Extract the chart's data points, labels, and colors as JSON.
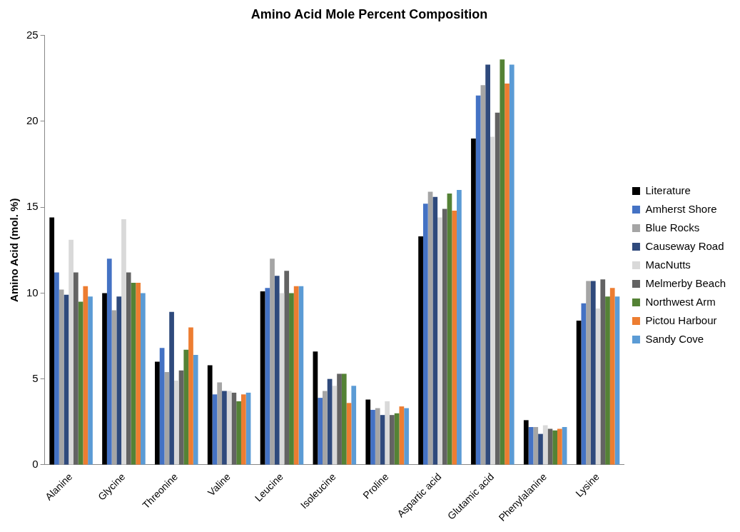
{
  "chart_data": {
    "type": "bar",
    "title": "Amino Acid Mole Percent Composition",
    "ylabel": "Amino Acid (mol. %)",
    "categories": [
      "Alanine",
      "Glycine",
      "Threonine",
      "Valine",
      "Leucine",
      "Isoleucine",
      "Proline",
      "Aspartic acid",
      "Glutamic acid",
      "Phenylalanine",
      "Lysine"
    ],
    "series": [
      {
        "name": "Literature",
        "color": "#000000",
        "values": [
          14.4,
          10.0,
          6.0,
          5.8,
          10.1,
          6.6,
          3.8,
          13.3,
          19.0,
          2.6,
          8.4
        ]
      },
      {
        "name": "Amherst Shore",
        "color": "#4472c4",
        "values": [
          11.2,
          12.0,
          6.8,
          4.1,
          10.3,
          3.9,
          3.2,
          15.2,
          21.5,
          2.2,
          9.4
        ]
      },
      {
        "name": "Blue Rocks",
        "color": "#a5a5a5",
        "values": [
          10.2,
          9.0,
          5.4,
          4.8,
          12.0,
          4.3,
          3.3,
          15.9,
          22.1,
          2.2,
          10.7
        ]
      },
      {
        "name": "Causeway Road",
        "color": "#2f4a7c",
        "values": [
          9.9,
          9.8,
          8.9,
          4.3,
          11.0,
          5.0,
          2.9,
          15.6,
          23.3,
          1.8,
          10.7
        ]
      },
      {
        "name": "MacNutts",
        "color": "#d9d9d9",
        "values": [
          13.1,
          14.3,
          4.9,
          4.3,
          10.0,
          4.6,
          3.7,
          14.4,
          19.1,
          2.3,
          9.1
        ]
      },
      {
        "name": "Melmerby Beach",
        "color": "#636363",
        "values": [
          11.2,
          11.2,
          5.5,
          4.2,
          11.3,
          5.3,
          2.9,
          14.9,
          20.5,
          2.1,
          10.8
        ]
      },
      {
        "name": "Northwest Arm",
        "color": "#548235",
        "values": [
          9.5,
          10.6,
          6.7,
          3.7,
          10.0,
          5.3,
          3.0,
          15.8,
          23.6,
          2.0,
          9.8
        ]
      },
      {
        "name": "Pictou Harbour",
        "color": "#ed7d31",
        "values": [
          10.4,
          10.6,
          8.0,
          4.1,
          10.4,
          3.6,
          3.4,
          14.8,
          22.2,
          2.1,
          10.3
        ]
      },
      {
        "name": "Sandy Cove",
        "color": "#5b9bd5",
        "values": [
          9.8,
          10.0,
          6.4,
          4.2,
          10.4,
          4.6,
          3.3,
          16.0,
          23.3,
          2.2,
          9.8
        ]
      }
    ],
    "ylim": [
      0,
      25
    ],
    "yticks": [
      0,
      5,
      10,
      15,
      20,
      25
    ],
    "grid": false,
    "legend": "right"
  }
}
